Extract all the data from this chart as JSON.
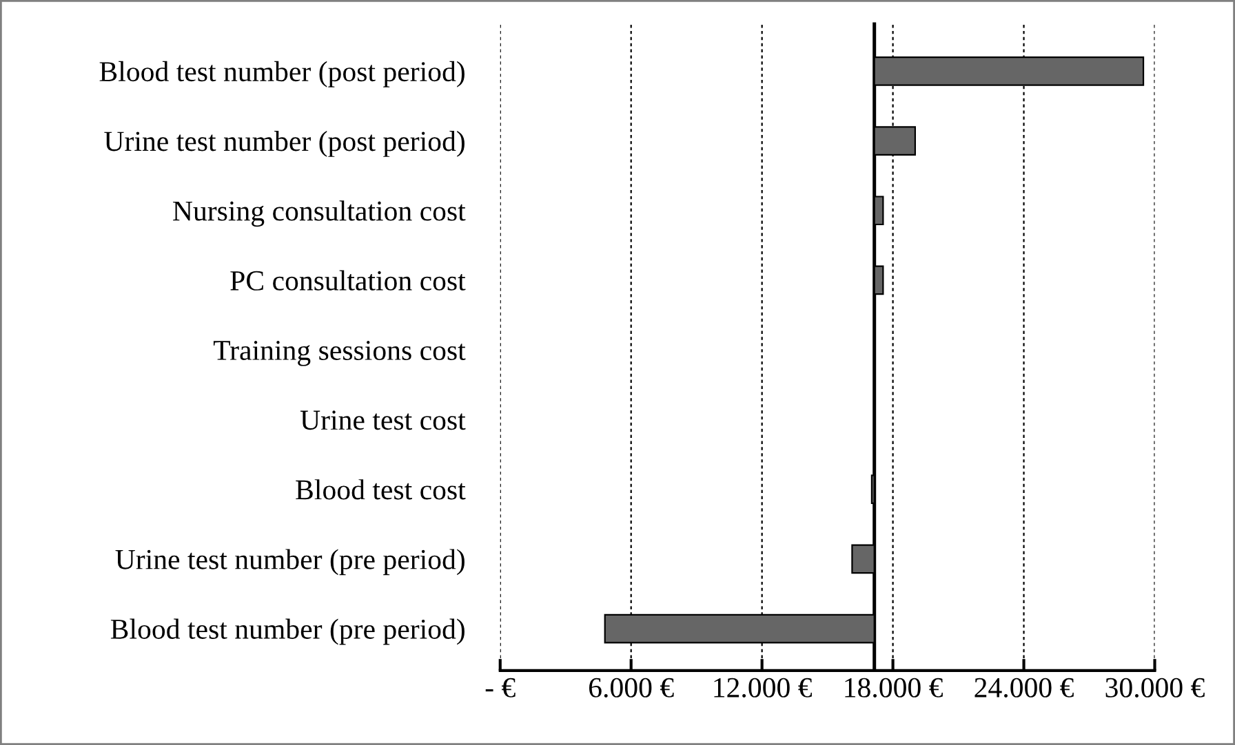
{
  "chart_data": {
    "type": "bar",
    "orientation": "horizontal",
    "categories": [
      "Blood test number (post period)",
      "Urine test number (post period)",
      "Nursing consultation cost",
      "PC consultation cost",
      "Training sessions cost",
      "Urine test cost",
      "Blood test cost",
      "Urine test number (pre period)",
      "Blood test number (pre period)"
    ],
    "base": [
      17150,
      17150,
      17150,
      17150,
      null,
      null,
      17150,
      17150,
      17150
    ],
    "values": [
      12330,
      1870,
      400,
      400,
      null,
      null,
      -120,
      -1020,
      -12350
    ],
    "color": "#666666",
    "xlim": [
      0,
      30000
    ],
    "xticks": [
      {
        "value": 0,
        "label": "- €"
      },
      {
        "value": 6000,
        "label": "6.000 €"
      },
      {
        "value": 12000,
        "label": "12.000 €"
      },
      {
        "value": 18000,
        "label": "18.000 €"
      },
      {
        "value": 24000,
        "label": "24.000 €"
      },
      {
        "value": 30000,
        "label": "30.000 €"
      }
    ],
    "ref_lines": [
      {
        "axis": "x",
        "value": 17150,
        "label": null,
        "color": "#000000"
      }
    ],
    "grid": "x"
  }
}
